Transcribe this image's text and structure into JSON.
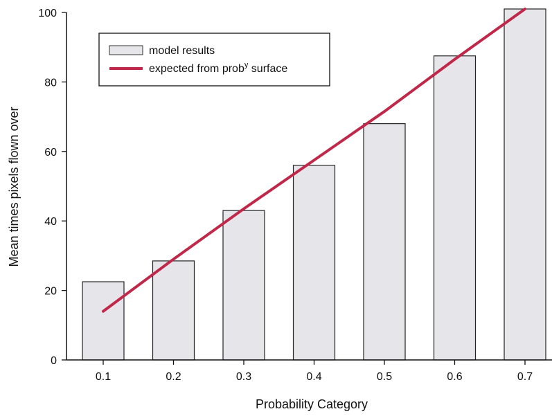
{
  "chart_data": {
    "type": "bar",
    "categories": [
      "0.1",
      "0.2",
      "0.3",
      "0.4",
      "0.5",
      "0.6",
      "0.7"
    ],
    "series": [
      {
        "name": "model results",
        "values": [
          22.5,
          28.5,
          43,
          56,
          68,
          87.5,
          101
        ],
        "color": "#e6e6ea"
      }
    ],
    "line_series": {
      "name": "expected from prob^y surface",
      "values": [
        14,
        29,
        43.5,
        57.5,
        71.5,
        86.5,
        101
      ],
      "color": "#c0284a"
    },
    "xlabel": "Probability Category",
    "ylabel": "Mean times pixels flown over",
    "ylim": [
      0,
      100
    ],
    "yticks": [
      0,
      20,
      40,
      60,
      80,
      100
    ],
    "legend": {
      "bar_label": "model results",
      "line_label_main": "expected from prob",
      "line_label_sup": "y",
      "line_label_tail": " surface",
      "placement": "top-left"
    }
  }
}
